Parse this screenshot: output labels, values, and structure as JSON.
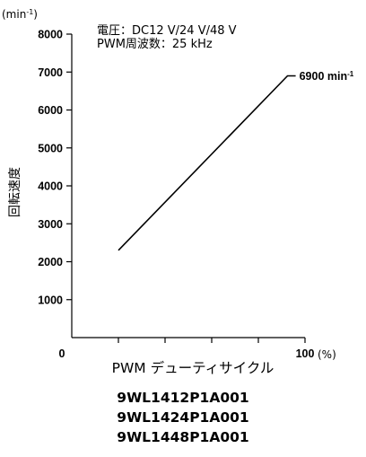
{
  "chart_data": {
    "type": "line",
    "y_unit_label": "(min⁻¹)",
    "y_unit_base": "(min",
    "y_unit_sup": "-1",
    "y_unit_close": ")",
    "conditions": [
      "電圧：DC12 V/24 V/48 V",
      "PWM周波数：25 kHz"
    ],
    "ylabel": "回転速度",
    "xlabel": "PWM デューティサイクル",
    "x_unit": "(%)",
    "xlim": [
      0,
      100
    ],
    "ylim": [
      0,
      8000
    ],
    "y_ticks": [
      0,
      1000,
      2000,
      3000,
      4000,
      5000,
      6000,
      7000,
      8000
    ],
    "y_tick_labels": [
      "0",
      "1000",
      "2000",
      "3000",
      "4000",
      "5000",
      "6000",
      "7000",
      "8000"
    ],
    "x_ticks": [
      20,
      40,
      60,
      80,
      100
    ],
    "x_tick_labels_shown": {
      "0": "0",
      "100": "100"
    },
    "series": [
      {
        "x": [
          20,
          92.5,
          96
        ],
        "y": [
          2300,
          6900,
          6900
        ]
      }
    ],
    "annotation": {
      "x": 96,
      "y": 6900,
      "value": "6900",
      "unit_base": "min",
      "unit_sup": "-1"
    },
    "grid": false
  },
  "models": [
    "9WL1412P1A001",
    "9WL1424P1A001",
    "9WL1448P1A001"
  ]
}
